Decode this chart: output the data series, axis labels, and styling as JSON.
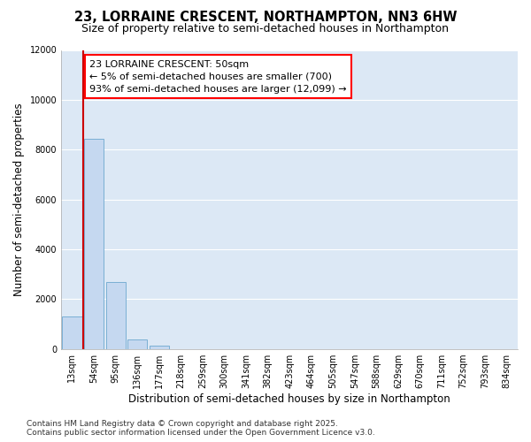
{
  "title_line1": "23, LORRAINE CRESCENT, NORTHAMPTON, NN3 6HW",
  "title_line2": "Size of property relative to semi-detached houses in Northampton",
  "xlabel": "Distribution of semi-detached houses by size in Northampton",
  "ylabel": "Number of semi-detached properties",
  "categories": [
    "13sqm",
    "54sqm",
    "95sqm",
    "136sqm",
    "177sqm",
    "218sqm",
    "259sqm",
    "300sqm",
    "341sqm",
    "382sqm",
    "423sqm",
    "464sqm",
    "505sqm",
    "547sqm",
    "588sqm",
    "629sqm",
    "670sqm",
    "711sqm",
    "752sqm",
    "793sqm",
    "834sqm"
  ],
  "values": [
    1300,
    8450,
    2680,
    380,
    120,
    0,
    0,
    0,
    0,
    0,
    0,
    0,
    0,
    0,
    0,
    0,
    0,
    0,
    0,
    0,
    0
  ],
  "bar_color": "#c5d8f0",
  "bar_edge_color": "#7aafd4",
  "marker_color": "#cc0000",
  "annotation_title": "23 LORRAINE CRESCENT: 50sqm",
  "annotation_line2": "← 5% of semi-detached houses are smaller (700)",
  "annotation_line3": "93% of semi-detached houses are larger (12,099) →",
  "ylim": [
    0,
    12000
  ],
  "yticks": [
    0,
    2000,
    4000,
    6000,
    8000,
    10000,
    12000
  ],
  "footer_line1": "Contains HM Land Registry data © Crown copyright and database right 2025.",
  "footer_line2": "Contains public sector information licensed under the Open Government Licence v3.0.",
  "fig_bg_color": "#ffffff",
  "plot_bg_color": "#dce8f5",
  "grid_color": "#ffffff",
  "title_fontsize": 10.5,
  "subtitle_fontsize": 9,
  "axis_label_fontsize": 8.5,
  "tick_fontsize": 7,
  "annotation_fontsize": 8,
  "footer_fontsize": 6.5
}
